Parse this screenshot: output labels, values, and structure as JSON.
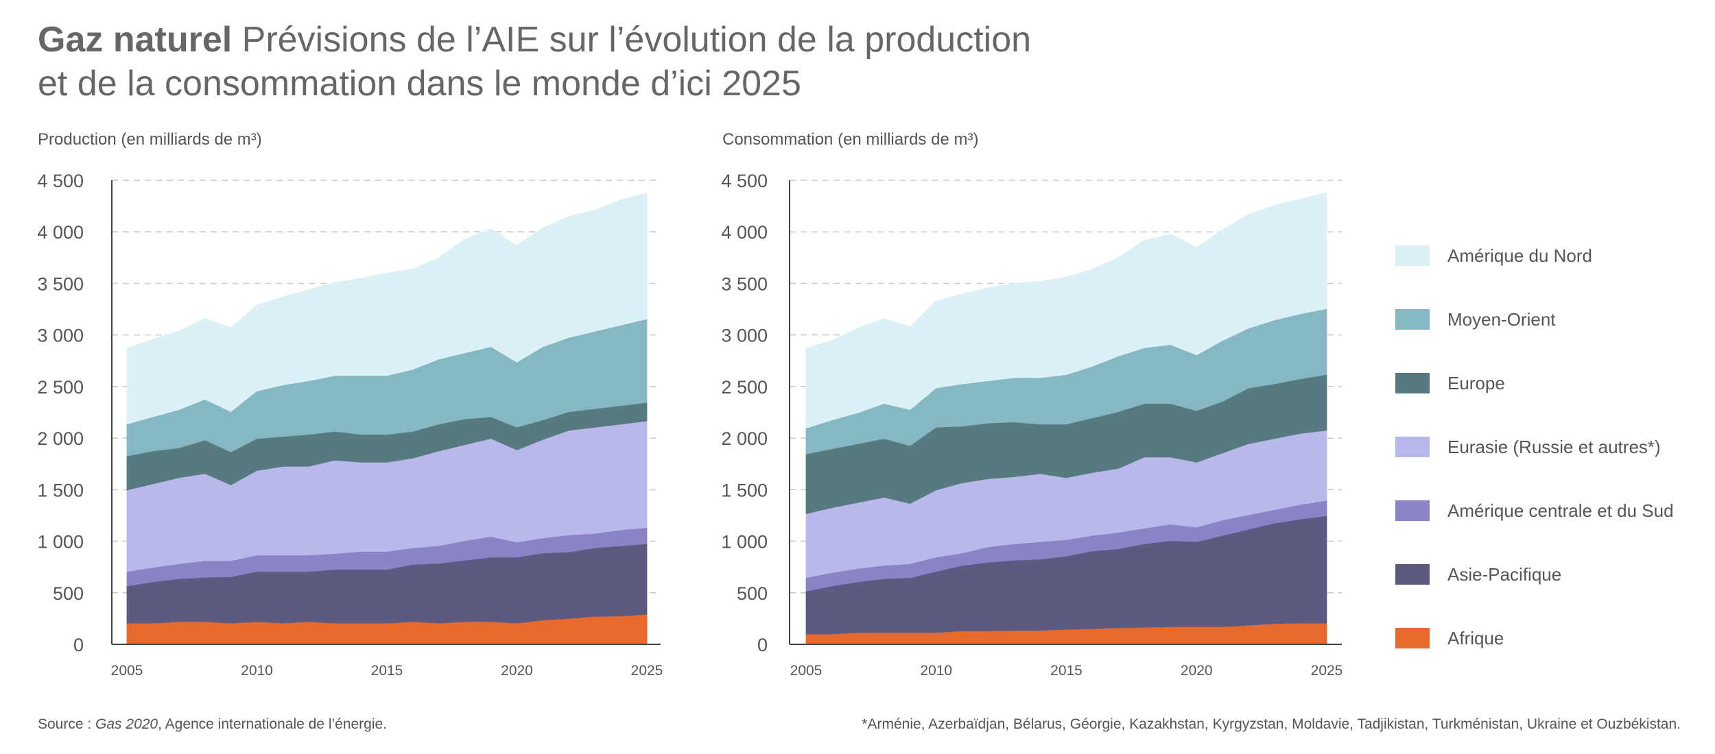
{
  "header": {
    "title_bold": "Gaz naturel",
    "title_line1": "Prévisions de l’AIE sur l’évolution de la production",
    "title_line2": "et de la consommation dans le monde d’ici 2025"
  },
  "footer": {
    "source_prefix": "Source : ",
    "source_italic": "Gas 2020",
    "source_suffix": ", Agence internationale de l’énergie.",
    "note": "*Arménie, Azerbaïdjan, Bélarus, Géorgie, Kazakhstan, Kyrgyzstan, Moldavie, Tadjikistan, Turkménistan, Ukraine et Ouzbékistan."
  },
  "legend": [
    {
      "label": "Amérique du Nord",
      "color": "#dcf1f5"
    },
    {
      "label": "Moyen-Orient",
      "color": "#86b8c3"
    },
    {
      "label": "Europe",
      "color": "#567a80"
    },
    {
      "label": "Eurasie (Russie et autres*)",
      "color": "#b8b8ea"
    },
    {
      "label": "Amérique centrale et du Sud",
      "color": "#8a84c6"
    },
    {
      "label": "Asie-Pacifique",
      "color": "#5d5a82"
    },
    {
      "label": "Afrique",
      "color": "#e66a2e"
    }
  ],
  "chart_data": [
    {
      "type": "area",
      "stacked": true,
      "title": "Production (en milliards de m³)",
      "x": [
        2005,
        2006,
        2007,
        2008,
        2009,
        2010,
        2011,
        2012,
        2013,
        2014,
        2015,
        2016,
        2017,
        2018,
        2019,
        2020,
        2021,
        2022,
        2023,
        2024,
        2025
      ],
      "xticks": [
        2005,
        2010,
        2015,
        2020,
        2025
      ],
      "yticks": [
        0,
        500,
        1000,
        1500,
        2000,
        2500,
        3000,
        3500,
        4000,
        4500
      ],
      "ytick_labels": [
        "0",
        "500",
        "1 000",
        "1 500",
        "2 000",
        "2 500",
        "3 000",
        "3 500",
        "4 000",
        "4 500"
      ],
      "ylim": [
        0,
        4500
      ],
      "xlim": [
        2005,
        2025
      ],
      "totals": {
        "Afrique": [
          200,
          200,
          215,
          215,
          200,
          215,
          200,
          215,
          200,
          200,
          200,
          215,
          200,
          215,
          215,
          200,
          230,
          245,
          265,
          270,
          285
        ],
        "Asie-Pacifique": [
          560,
          600,
          630,
          645,
          650,
          700,
          700,
          700,
          720,
          720,
          720,
          770,
          780,
          810,
          840,
          840,
          880,
          890,
          930,
          950,
          970
        ],
        "Amérique centrale et du Sud": [
          700,
          740,
          775,
          805,
          805,
          860,
          860,
          860,
          875,
          895,
          895,
          930,
          950,
          1000,
          1040,
          985,
          1025,
          1055,
          1070,
          1105,
          1125
        ],
        "Eurasie (Russie et autres*)": [
          1490,
          1550,
          1610,
          1650,
          1540,
          1680,
          1720,
          1720,
          1780,
          1760,
          1760,
          1800,
          1870,
          1930,
          1990,
          1880,
          1980,
          2070,
          2100,
          2130,
          2160
        ],
        "Europe": [
          1820,
          1870,
          1900,
          1975,
          1860,
          1990,
          2010,
          2030,
          2060,
          2030,
          2030,
          2060,
          2130,
          2180,
          2200,
          2100,
          2170,
          2250,
          2280,
          2310,
          2340
        ],
        "Moyen-Orient": [
          2130,
          2200,
          2270,
          2370,
          2250,
          2450,
          2510,
          2550,
          2600,
          2600,
          2600,
          2660,
          2760,
          2820,
          2880,
          2730,
          2880,
          2970,
          3030,
          3090,
          3150
        ],
        "Amérique du Nord": [
          2870,
          2960,
          3040,
          3160,
          3070,
          3290,
          3370,
          3440,
          3510,
          3550,
          3600,
          3640,
          3750,
          3930,
          4030,
          3870,
          4040,
          4150,
          4210,
          4310,
          4380
        ]
      }
    },
    {
      "type": "area",
      "stacked": true,
      "title": "Consommation (en milliards de m³)",
      "x": [
        2005,
        2006,
        2007,
        2008,
        2009,
        2010,
        2011,
        2012,
        2013,
        2014,
        2015,
        2016,
        2017,
        2018,
        2019,
        2020,
        2021,
        2022,
        2023,
        2024,
        2025
      ],
      "xticks": [
        2005,
        2010,
        2015,
        2020,
        2025
      ],
      "yticks": [
        0,
        500,
        1000,
        1500,
        2000,
        2500,
        3000,
        3500,
        4000,
        4500
      ],
      "ytick_labels": [
        "0",
        "500",
        "1 000",
        "1 500",
        "2 000",
        "2 500",
        "3 000",
        "3 500",
        "4 000",
        "4 500"
      ],
      "ylim": [
        0,
        4500
      ],
      "xlim": [
        2005,
        2025
      ],
      "totals": {
        "Afrique": [
          95,
          95,
          110,
          110,
          110,
          110,
          125,
          125,
          130,
          130,
          140,
          145,
          155,
          160,
          165,
          165,
          165,
          180,
          195,
          200,
          200
        ],
        "Asie-Pacifique": [
          510,
          560,
          600,
          630,
          640,
          700,
          760,
          790,
          810,
          820,
          850,
          900,
          920,
          970,
          1000,
          990,
          1050,
          1110,
          1170,
          1210,
          1240
        ],
        "Amérique centrale et du Sud": [
          640,
          690,
          730,
          760,
          775,
          840,
          880,
          940,
          970,
          990,
          1010,
          1050,
          1080,
          1120,
          1160,
          1130,
          1200,
          1250,
          1300,
          1350,
          1390
        ],
        "Eurasie (Russie et autres*)": [
          1260,
          1320,
          1370,
          1420,
          1360,
          1490,
          1560,
          1600,
          1620,
          1650,
          1610,
          1660,
          1700,
          1810,
          1810,
          1760,
          1850,
          1940,
          1990,
          2040,
          2070
        ],
        "Europe": [
          1840,
          1890,
          1940,
          1990,
          1920,
          2100,
          2110,
          2140,
          2150,
          2130,
          2130,
          2190,
          2250,
          2330,
          2330,
          2260,
          2350,
          2480,
          2520,
          2570,
          2610
        ],
        "Moyen-Orient": [
          2090,
          2170,
          2240,
          2330,
          2270,
          2480,
          2520,
          2550,
          2580,
          2580,
          2610,
          2690,
          2790,
          2870,
          2900,
          2800,
          2940,
          3060,
          3140,
          3200,
          3250
        ],
        "Amérique du Nord": [
          2870,
          2950,
          3070,
          3160,
          3080,
          3330,
          3400,
          3460,
          3500,
          3520,
          3560,
          3640,
          3750,
          3920,
          3980,
          3850,
          4020,
          4170,
          4260,
          4320,
          4380
        ]
      }
    }
  ]
}
